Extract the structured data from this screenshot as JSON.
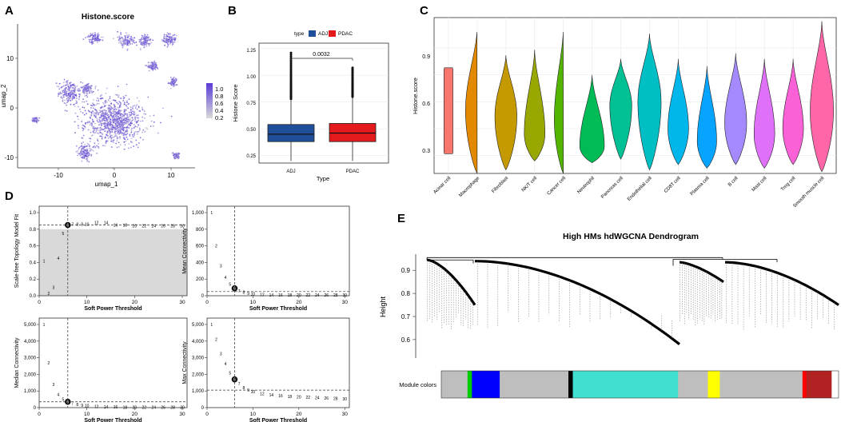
{
  "panels": {
    "A": {
      "letter": "A",
      "title": "Histone.score",
      "xlabel": "umap_1",
      "ylabel": "umap_2",
      "x_ticks": [
        "-10",
        "0",
        "10"
      ],
      "y_ticks": [
        "10",
        "0",
        "-10"
      ],
      "legend_ticks": [
        "1.0",
        "0.8",
        "0.6",
        "0.4",
        "0.2"
      ],
      "color_low": "#d9d9d9",
      "color_high": "#5a3ad8"
    },
    "B": {
      "letter": "B",
      "legend_title": "type",
      "legend_items": [
        "ADJ",
        "PDAC"
      ],
      "colors": [
        "#1f4e9a",
        "#e41a1c"
      ],
      "pvalue": "0.0032",
      "xlabel": "Type",
      "ylabel": "Histone Score",
      "y_ticks": [
        "1.25",
        "1.00",
        "0.75",
        "0.50",
        "0.25"
      ]
    },
    "C": {
      "letter": "C",
      "ylabel": "Histone.score",
      "y_ticks": [
        "0.9",
        "0.6",
        "0.3"
      ]
    },
    "D": {
      "letter": "D",
      "xlabel": "Soft Power Threshold",
      "x_ticks": [
        "0",
        "10",
        "20",
        "30"
      ],
      "powers": [
        "1",
        "2",
        "3",
        "4",
        "5",
        "6",
        "7",
        "8",
        "9",
        "10",
        "12",
        "14",
        "16",
        "18",
        "20",
        "22",
        "24",
        "26",
        "28",
        "30"
      ],
      "subplots": [
        {
          "ylabel": "Scale-free Topology Model Fit",
          "y_ticks": [
            "1.0",
            "0.8",
            "0.6",
            "0.4",
            "0.2",
            "0.0"
          ]
        },
        {
          "ylabel": "Mean Connectivity",
          "y_ticks": [
            "1,000",
            "800",
            "600",
            "400",
            "200",
            "0"
          ]
        },
        {
          "ylabel": "Median Connectivity",
          "y_ticks": [
            "5,000",
            "4,000",
            "3,000",
            "2,000",
            "1,000",
            "0"
          ]
        },
        {
          "ylabel": "Max Connectivity",
          "y_ticks": [
            "5,000",
            "4,000",
            "3,000",
            "2,000",
            "1,000",
            "0"
          ]
        }
      ]
    },
    "E": {
      "letter": "E",
      "title": "High HMs hdWGCNA Dendrogram",
      "ylabel": "Height",
      "y_ticks": [
        "0.9",
        "0.8",
        "0.7",
        "0.6"
      ],
      "module_label": "Module colors"
    }
  },
  "chart_data": [
    {
      "type": "scatter",
      "panel": "A",
      "title": "Histone.score",
      "xlabel": "umap_1",
      "ylabel": "umap_2",
      "xlim": [
        -16,
        14
      ],
      "ylim": [
        -13,
        16
      ],
      "clusters": [
        {
          "x": 0.3,
          "y": -3.5,
          "spread": [
            5,
            4.5
          ]
        },
        {
          "x": -7.2,
          "y": 2.2,
          "spread": [
            1.8,
            2.2
          ]
        },
        {
          "x": -4.2,
          "y": 3.0,
          "spread": [
            1.0,
            1.0
          ]
        },
        {
          "x": -4.5,
          "y": -9.8,
          "spread": [
            1.3,
            1.5
          ]
        },
        {
          "x": -3.0,
          "y": 13.2,
          "spread": [
            1.1,
            0.9
          ]
        },
        {
          "x": 2.3,
          "y": 12.6,
          "spread": [
            1.3,
            1.2
          ]
        },
        {
          "x": 5.5,
          "y": 12.4,
          "spread": [
            1.0,
            1.2
          ]
        },
        {
          "x": 9.5,
          "y": 12.8,
          "spread": [
            1.2,
            1.1
          ]
        },
        {
          "x": 6.8,
          "y": 7.5,
          "spread": [
            1.0,
            0.8
          ]
        },
        {
          "x": 10.3,
          "y": 4.2,
          "spread": [
            0.6,
            0.8
          ]
        },
        {
          "x": -13.0,
          "y": -3.3,
          "spread": [
            0.5,
            0.5
          ]
        },
        {
          "x": 10.8,
          "y": -10.5,
          "spread": [
            0.5,
            0.6
          ]
        }
      ],
      "color_scale": [
        0.2,
        1.0
      ]
    },
    {
      "type": "box",
      "panel": "B",
      "categories": [
        "ADJ",
        "PDAC"
      ],
      "ylabel": "Histone Score",
      "xlabel": "Type",
      "ylim": [
        0.18,
        1.3
      ],
      "boxes": [
        {
          "name": "ADJ",
          "q1": 0.38,
          "median": 0.45,
          "q3": 0.54,
          "whisker_low": 0.2,
          "whisker_high": 0.78,
          "outlier_max": 1.21
        },
        {
          "name": "PDAC",
          "q1": 0.38,
          "median": 0.46,
          "q3": 0.55,
          "whisker_low": 0.2,
          "whisker_high": 0.8,
          "outlier_max": 1.07
        }
      ],
      "pvalue": "0.0032"
    },
    {
      "type": "violin",
      "panel": "C",
      "ylabel": "Histone.score",
      "ylim": [
        0.2,
        1.07
      ],
      "categories": [
        "Acinar cell",
        "Macrophage",
        "Fibroblast",
        "NK/T cell",
        "Cancer cell",
        "Neutrophil",
        "Pancreas cell",
        "Endothelial cell",
        "CD8T cell",
        "Plasma cell",
        "B cell",
        "Mast cell",
        "Treg cell",
        "Smooth muscle cell"
      ],
      "violins": [
        {
          "min": 0.31,
          "max": 0.79,
          "mode": 0.55,
          "width": 0.35,
          "color": "#f8766d"
        },
        {
          "min": 0.2,
          "max": 1.01,
          "mode": 0.55,
          "width": 0.9,
          "color": "#e38900"
        },
        {
          "min": 0.22,
          "max": 0.86,
          "mode": 0.52,
          "width": 0.85,
          "color": "#c49a00"
        },
        {
          "min": 0.27,
          "max": 0.89,
          "mode": 0.42,
          "width": 0.8,
          "color": "#99a800"
        },
        {
          "min": 0.2,
          "max": 1.01,
          "mode": 0.5,
          "width": 0.7,
          "color": "#53b400"
        },
        {
          "min": 0.26,
          "max": 0.75,
          "mode": 0.35,
          "width": 0.95,
          "color": "#00bc56"
        },
        {
          "min": 0.28,
          "max": 0.84,
          "mode": 0.58,
          "width": 0.85,
          "color": "#00c094"
        },
        {
          "min": 0.22,
          "max": 0.98,
          "mode": 0.6,
          "width": 0.9,
          "color": "#00bfc4"
        },
        {
          "min": 0.25,
          "max": 0.84,
          "mode": 0.45,
          "width": 0.8,
          "color": "#00b6eb"
        },
        {
          "min": 0.23,
          "max": 0.8,
          "mode": 0.38,
          "width": 0.75,
          "color": "#06a4ff"
        },
        {
          "min": 0.25,
          "max": 0.87,
          "mode": 0.48,
          "width": 0.85,
          "color": "#a58aff"
        },
        {
          "min": 0.23,
          "max": 0.84,
          "mode": 0.42,
          "width": 0.8,
          "color": "#df70f8"
        },
        {
          "min": 0.25,
          "max": 0.84,
          "mode": 0.45,
          "width": 0.8,
          "color": "#fb61d7"
        },
        {
          "min": 0.21,
          "max": 1.05,
          "mode": 0.55,
          "width": 0.9,
          "color": "#ff66a8"
        }
      ]
    },
    {
      "type": "scatter",
      "panel": "D",
      "xlabel": "Soft Power Threshold",
      "x": [
        1,
        2,
        3,
        4,
        5,
        6,
        7,
        8,
        9,
        10,
        12,
        14,
        16,
        18,
        20,
        22,
        24,
        26,
        28,
        30
      ],
      "selected_power": 6,
      "series": [
        {
          "name": "Scale-free Topology Model Fit",
          "ylim": [
            0,
            1.0
          ],
          "threshold": 0.85,
          "values": [
            0.42,
            0.03,
            0.1,
            0.45,
            0.75,
            0.85,
            0.86,
            0.86,
            0.86,
            0.86,
            0.88,
            0.88,
            0.85,
            0.85,
            0.84,
            0.84,
            0.84,
            0.84,
            0.84,
            0.84
          ]
        },
        {
          "name": "Mean Connectivity",
          "ylim": [
            0,
            1000
          ],
          "threshold": 50,
          "values": [
            1000,
            600,
            360,
            220,
            140,
            90,
            60,
            45,
            30,
            22,
            15,
            12,
            10,
            10,
            10,
            10,
            10,
            10,
            10,
            10
          ]
        },
        {
          "name": "Median Connectivity",
          "ylim": [
            0,
            5000
          ],
          "threshold": 350,
          "values": [
            5000,
            2700,
            1400,
            800,
            500,
            350,
            260,
            190,
            140,
            110,
            70,
            50,
            40,
            30,
            25,
            20,
            20,
            20,
            20,
            20
          ]
        },
        {
          "name": "Max Connectivity",
          "ylim": [
            0,
            5000
          ],
          "threshold": 1050,
          "values": [
            5000,
            4100,
            3250,
            2650,
            2100,
            1700,
            1450,
            1200,
            1050,
            950,
            850,
            780,
            720,
            680,
            650,
            620,
            600,
            580,
            560,
            540
          ]
        }
      ]
    },
    {
      "type": "dendrogram",
      "panel": "E",
      "title": "High HMs hdWGCNA Dendrogram",
      "ylabel": "Height",
      "ylim": [
        0.52,
        0.97
      ],
      "module_colors": [
        {
          "color": "#bebebe",
          "span": 0.066
        },
        {
          "color": "#00cd00",
          "span": 0.011
        },
        {
          "color": "#0000ff",
          "span": 0.07
        },
        {
          "color": "#bebebe",
          "span": 0.173
        },
        {
          "color": "#000000",
          "span": 0.011
        },
        {
          "color": "#40e0d0",
          "span": 0.265
        },
        {
          "color": "#bebebe",
          "span": 0.075
        },
        {
          "color": "#ffff00",
          "span": 0.03
        },
        {
          "color": "#bebebe",
          "span": 0.208
        },
        {
          "color": "#ff0000",
          "span": 0.01
        },
        {
          "color": "#b22222",
          "span": 0.063
        }
      ]
    }
  ]
}
